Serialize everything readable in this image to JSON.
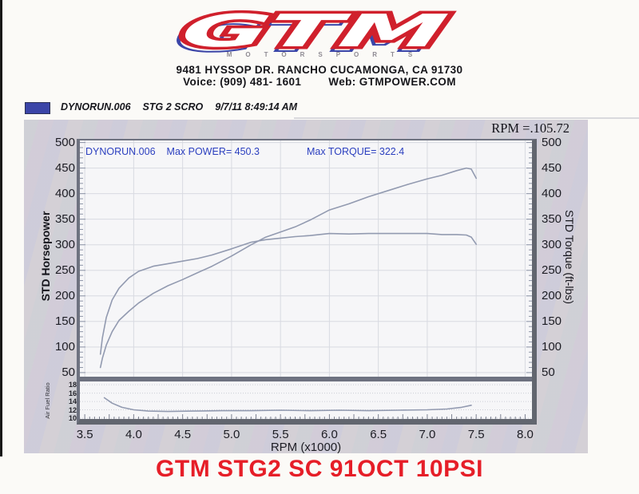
{
  "header": {
    "logo_text": "GTM",
    "logo_subtext": "MOTORSPORTS",
    "address": "9481 HYSSOP DR. RANCHO CUCAMONGA, CA 91730",
    "contact_voice": "Voice: (909) 481- 1601",
    "contact_web": "Web: GTMPOWER.COM"
  },
  "legend": {
    "swatch_color": "#3b45a8",
    "run_file": "DYNORUN.006",
    "run_desc": "STG 2 SCRO",
    "run_timestamp": "9/7/11 8:49:14 AM"
  },
  "chart": {
    "rpm_readout": "RPM =.105.72",
    "annotation_run_file": "DYNORUN.006",
    "annotation_max_power": "Max POWER= 450.3",
    "annotation_max_torque": "Max TORQUE= 322.4",
    "left_axis_title": "STD Horsepower",
    "right_axis_title": "STD Torque (ft-lbs)",
    "x_axis_title": "RPM (x1000)",
    "afr_axis_title": "Air Fuel Ratio",
    "curve_color": "#929ab0",
    "annotation_color": "#2b3fbf"
  },
  "caption": "GTM STG2 SC 91OCT 10PSI",
  "chart_data": {
    "type": "line",
    "title": "DYNORUN.006 STG 2 SCRO 9/7/11 8:49:14 AM",
    "xlabel": "RPM (x1000)",
    "ylabel_left": "STD Horsepower",
    "ylabel_right": "STD Torque (ft-lbs)",
    "xlim": [
      3.5,
      8.0
    ],
    "ylim": [
      50,
      500
    ],
    "afr_ylim": [
      10,
      18
    ],
    "grid": true,
    "legend_position": "top-left",
    "max_power": 450.3,
    "max_torque": 322.4,
    "x_ticks": [
      3.5,
      4.0,
      4.5,
      5.0,
      5.5,
      6.0,
      6.5,
      7.0,
      7.5,
      8.0
    ],
    "y_ticks": [
      500,
      450,
      400,
      350,
      300,
      250,
      200,
      150,
      100,
      50
    ],
    "afr_ticks": [
      18,
      16,
      14,
      12,
      10
    ],
    "series": [
      {
        "name": "STD Horsepower",
        "x": [
          3.66,
          3.68,
          3.72,
          3.78,
          3.85,
          3.95,
          4.05,
          4.2,
          4.35,
          4.5,
          4.65,
          4.8,
          5.0,
          5.2,
          5.35,
          5.5,
          5.65,
          5.8,
          6.0,
          6.2,
          6.4,
          6.6,
          6.8,
          7.0,
          7.15,
          7.3,
          7.4,
          7.45,
          7.5
        ],
        "values": [
          60,
          78,
          104,
          130,
          152,
          170,
          186,
          205,
          220,
          232,
          245,
          258,
          278,
          300,
          315,
          325,
          335,
          348,
          368,
          380,
          394,
          406,
          418,
          429,
          436,
          445,
          450,
          448,
          430
        ]
      },
      {
        "name": "STD Torque (ft-lbs)",
        "x": [
          3.66,
          3.68,
          3.72,
          3.78,
          3.85,
          3.95,
          4.05,
          4.2,
          4.35,
          4.5,
          4.65,
          4.8,
          5.0,
          5.2,
          5.35,
          5.5,
          5.65,
          5.8,
          6.0,
          6.2,
          6.4,
          6.6,
          6.8,
          7.0,
          7.15,
          7.3,
          7.4,
          7.45,
          7.5
        ],
        "values": [
          86,
          118,
          158,
          192,
          215,
          235,
          248,
          258,
          263,
          268,
          273,
          280,
          292,
          305,
          310,
          313,
          316,
          318,
          322,
          321,
          322,
          322,
          322,
          322,
          320,
          320,
          319,
          315,
          301
        ]
      },
      {
        "name": "Air Fuel Ratio",
        "x": [
          3.7,
          3.78,
          3.88,
          4.0,
          4.15,
          4.35,
          4.6,
          4.9,
          5.2,
          5.5,
          5.8,
          6.1,
          6.4,
          6.7,
          7.0,
          7.2,
          7.35,
          7.45
        ],
        "values": [
          14.9,
          13.6,
          12.6,
          12.0,
          11.7,
          11.6,
          11.7,
          11.8,
          11.8,
          11.9,
          11.8,
          11.9,
          11.8,
          11.9,
          12.0,
          12.2,
          12.6,
          13.1
        ]
      }
    ]
  }
}
